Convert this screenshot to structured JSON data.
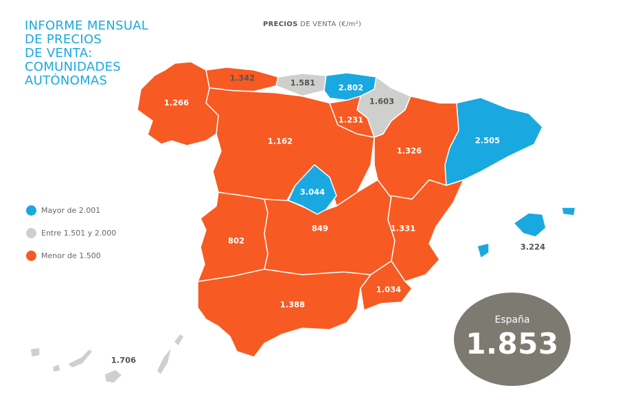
{
  "header": {
    "title_lines": [
      "INFORME MENSUAL",
      "DE PRECIOS",
      "DE VENTA:",
      "COMUNIDADES",
      "AUTÓNOMAS"
    ],
    "subtitle_bold": "PRECIOS",
    "subtitle_rest": " DE VENTA (€/m²)"
  },
  "legend": {
    "items": [
      {
        "label": "Mayor de 2.001",
        "color": "#1aa8e0"
      },
      {
        "label": "Entre 1.501 y 2.000",
        "color": "#cfcfcd"
      },
      {
        "label": "Menor de 1.500",
        "color": "#f75a22"
      }
    ]
  },
  "colors": {
    "high": "#1aa8e0",
    "mid": "#cfcfcd",
    "low": "#f75a22",
    "bubble": "#7d7a72"
  },
  "regions": {
    "galicia": "1.266",
    "asturias": "1.342",
    "cantabria": "1.581",
    "pais_vasco": "2.802",
    "navarra": "1.603",
    "la_rioja": "1.231",
    "castilla_leon": "1.162",
    "aragon": "1.326",
    "cataluna": "2.505",
    "madrid": "3.044",
    "castilla_la_mancha": "849",
    "extremadura": "802",
    "valencia": "1.331",
    "murcia": "1.034",
    "andalucia": "1.388",
    "baleares": "3.224",
    "canarias": "1.706"
  },
  "spain": {
    "label": "España",
    "value": "1.853"
  }
}
